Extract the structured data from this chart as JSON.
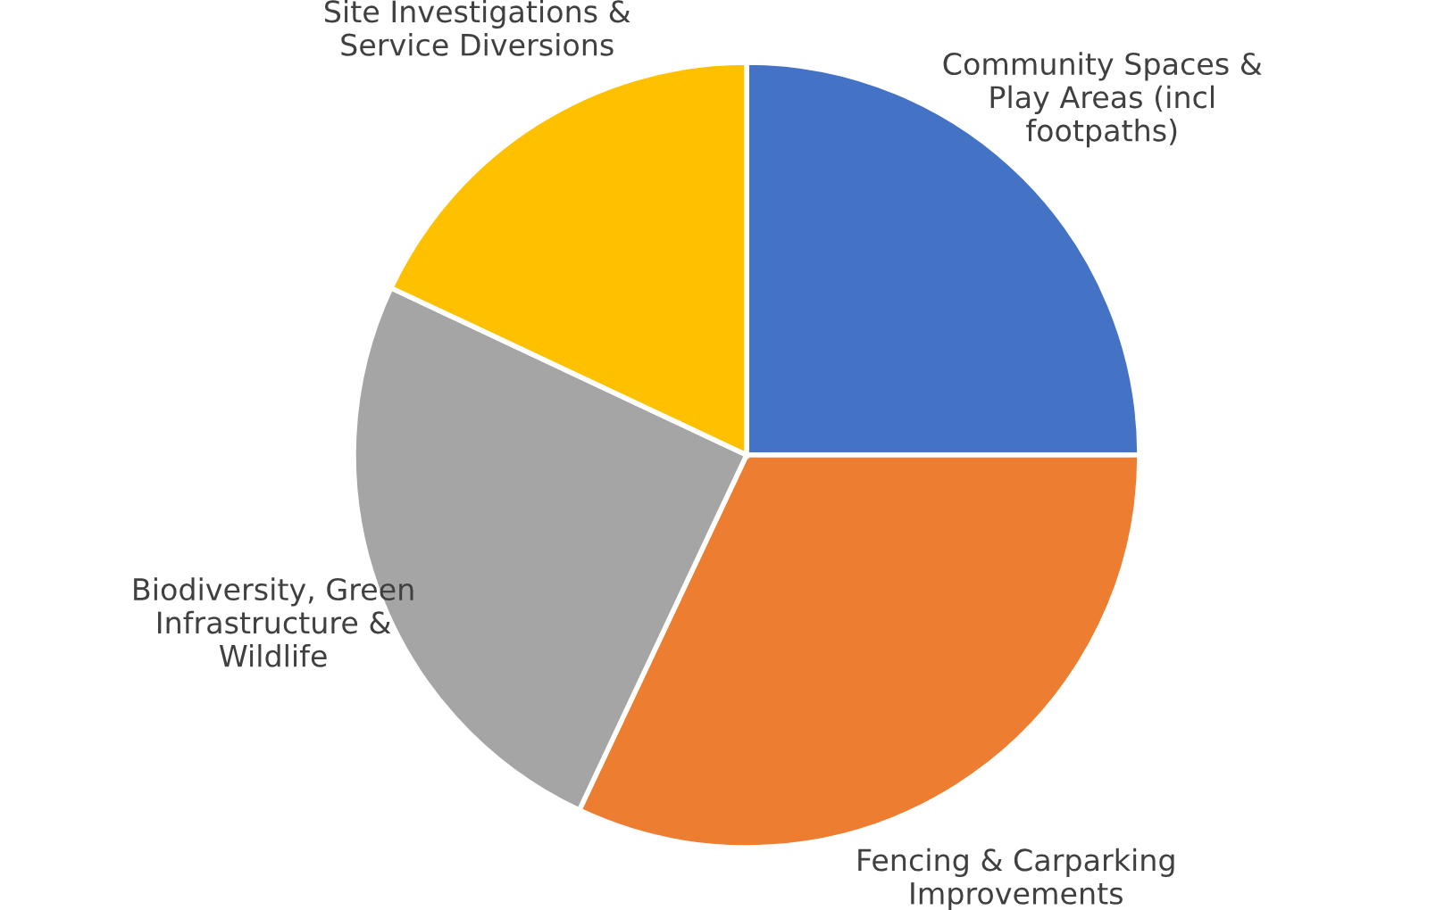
{
  "chart_data": {
    "type": "pie",
    "categories": [
      "Community Spaces &\nPlay Areas (incl\nfootpaths)",
      "Fencing & Carparking\nImprovements",
      "Biodiversity, Green\nInfrastructure &\nWildlife",
      "Site Investigations &\nService Diversions"
    ],
    "values": [
      25,
      32,
      25,
      18
    ],
    "colors": [
      "#4472c4",
      "#ed7d31",
      "#a5a5a5",
      "#ffc000"
    ],
    "legend": false
  }
}
